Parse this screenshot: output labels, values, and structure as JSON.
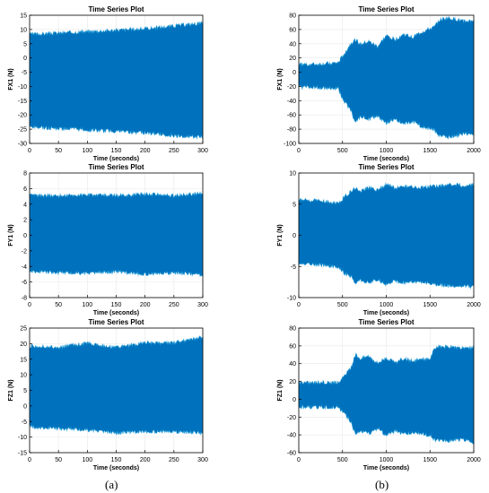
{
  "figure": {
    "caption_a": "(a)",
    "caption_b": "(b)"
  },
  "colors": {
    "signal": "#0072BD",
    "signal_edge": "#2A9FD8",
    "axes": "#000000",
    "grid": "#e8e8e8",
    "background": "#ffffff"
  },
  "chart_data": [
    {
      "id": "fx1-a",
      "type": "line",
      "title": "Time Series Plot",
      "xlabel": "Time (seconds)",
      "ylabel": "FX1 (N)",
      "xlim": [
        0,
        300
      ],
      "ylim": [
        -30,
        15
      ],
      "xticks": [
        0,
        50,
        100,
        150,
        200,
        250,
        300
      ],
      "yticks": [
        -30,
        -25,
        -20,
        -15,
        -10,
        -5,
        0,
        5,
        10,
        15
      ],
      "grid": true,
      "series": [
        {
          "x": [
            0,
            50,
            100,
            150,
            200,
            250,
            300
          ],
          "upper": [
            8,
            8.5,
            9,
            9.5,
            10,
            11,
            12
          ],
          "lower": [
            -24,
            -24.5,
            -25,
            -25.5,
            -26,
            -27,
            -27.5
          ]
        }
      ]
    },
    {
      "id": "fx1-b",
      "type": "line",
      "title": "Time Series Plot",
      "xlabel": "Time (seconds)",
      "ylabel": "FX1 (N)",
      "xlim": [
        0,
        2000
      ],
      "ylim": [
        -100,
        80
      ],
      "xticks": [
        0,
        500,
        1000,
        1500,
        2000
      ],
      "yticks": [
        -100,
        -80,
        -60,
        -40,
        -20,
        0,
        20,
        40,
        60,
        80
      ],
      "grid": true,
      "series": [
        {
          "x": [
            0,
            200,
            450,
            520,
            600,
            650,
            700,
            800,
            900,
            1000,
            1100,
            1200,
            1300,
            1400,
            1500,
            1550,
            1600,
            1700,
            1800,
            1900,
            2000
          ],
          "upper": [
            10,
            10,
            12,
            25,
            40,
            45,
            38,
            42,
            35,
            50,
            45,
            52,
            48,
            55,
            60,
            62,
            72,
            75,
            73,
            70,
            72
          ],
          "lower": [
            -20,
            -20,
            -22,
            -40,
            -55,
            -70,
            -62,
            -65,
            -60,
            -70,
            -65,
            -72,
            -68,
            -75,
            -78,
            -80,
            -88,
            -90,
            -88,
            -85,
            -88
          ]
        }
      ]
    },
    {
      "id": "fy1-a",
      "type": "line",
      "title": "Time Series Plot",
      "xlabel": "Time (seconds)",
      "ylabel": "FY1 (N)",
      "xlim": [
        0,
        300
      ],
      "ylim": [
        -8,
        8
      ],
      "xticks": [
        0,
        50,
        100,
        150,
        200,
        250,
        300
      ],
      "yticks": [
        -8,
        -6,
        -4,
        -2,
        0,
        2,
        4,
        6,
        8
      ],
      "grid": true,
      "series": [
        {
          "x": [
            0,
            50,
            100,
            150,
            200,
            250,
            300
          ],
          "upper": [
            5,
            5,
            5.1,
            5,
            5.2,
            5,
            5.3
          ],
          "lower": [
            -4.5,
            -4.7,
            -4.8,
            -4.6,
            -4.9,
            -4.7,
            -5
          ]
        }
      ]
    },
    {
      "id": "fy1-b",
      "type": "line",
      "title": "Time Series Plot",
      "xlabel": "Time (seconds)",
      "ylabel": "FY1 (N)",
      "xlim": [
        0,
        2000
      ],
      "ylim": [
        -10,
        10
      ],
      "xticks": [
        0,
        500,
        1000,
        1500,
        2000
      ],
      "yticks": [
        -10,
        -5,
        0,
        5,
        10
      ],
      "grid": true,
      "series": [
        {
          "x": [
            0,
            200,
            450,
            520,
            600,
            650,
            700,
            800,
            900,
            1000,
            1100,
            1200,
            1300,
            1400,
            1500,
            1600,
            1700,
            1800,
            1900,
            2000
          ],
          "upper": [
            5.5,
            5.5,
            5,
            6,
            7,
            7.5,
            7,
            7.5,
            7.2,
            8,
            7.5,
            7.8,
            7.6,
            7.5,
            7.7,
            7.8,
            8,
            8,
            7.8,
            8
          ],
          "lower": [
            -4.5,
            -4.5,
            -5,
            -6,
            -6.5,
            -7.5,
            -7,
            -7.5,
            -7,
            -7.8,
            -7.2,
            -7.5,
            -7.3,
            -7.5,
            -7.6,
            -7.8,
            -8,
            -8,
            -8,
            -8.2
          ]
        }
      ]
    },
    {
      "id": "fz1-a",
      "type": "line",
      "title": "Time Series Plot",
      "xlabel": "Time (seconds)",
      "ylabel": "FZ1 (N)",
      "xlim": [
        0,
        300
      ],
      "ylim": [
        -15,
        25
      ],
      "xticks": [
        0,
        50,
        100,
        150,
        200,
        250,
        300
      ],
      "yticks": [
        -15,
        -10,
        -5,
        0,
        5,
        10,
        15,
        20,
        25
      ],
      "grid": true,
      "series": [
        {
          "x": [
            0,
            50,
            100,
            150,
            200,
            250,
            300
          ],
          "upper": [
            19,
            18.5,
            20,
            18.5,
            20,
            20,
            22
          ],
          "lower": [
            -6.5,
            -7,
            -7.5,
            -8.5,
            -8,
            -8,
            -8.5
          ]
        }
      ]
    },
    {
      "id": "fz1-b",
      "type": "line",
      "title": "Time Series Plot",
      "xlabel": "Time (seconds)",
      "ylabel": "FZ1 (N)",
      "xlim": [
        0,
        2000
      ],
      "ylim": [
        -60,
        80
      ],
      "xticks": [
        0,
        500,
        1000,
        1500,
        2000
      ],
      "yticks": [
        -60,
        -40,
        -20,
        0,
        20,
        40,
        60,
        80
      ],
      "grid": true,
      "series": [
        {
          "x": [
            0,
            200,
            450,
            520,
            600,
            650,
            700,
            800,
            900,
            1000,
            1100,
            1200,
            1300,
            1400,
            1500,
            1550,
            1600,
            1700,
            1800,
            1900,
            2000
          ],
          "upper": [
            18,
            18,
            18,
            25,
            35,
            50,
            45,
            48,
            40,
            46,
            40,
            45,
            42,
            44,
            45,
            55,
            58,
            58,
            57,
            56,
            57
          ],
          "lower": [
            -8,
            -8,
            -8,
            -15,
            -25,
            -40,
            -35,
            -38,
            -32,
            -40,
            -35,
            -38,
            -36,
            -38,
            -40,
            -45,
            -45,
            -46,
            -45,
            -45,
            -48
          ]
        }
      ]
    }
  ]
}
